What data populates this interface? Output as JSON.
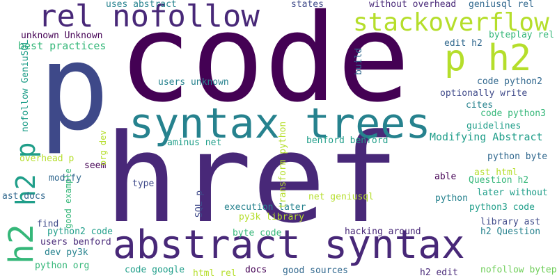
{
  "colors": {
    "background": "#ffffff",
    "palette": {
      "deep_purple": "#440154",
      "purple": "#482878",
      "indigo": "#3e4989",
      "blue": "#31688e",
      "teal_blue": "#26828e",
      "teal": "#1f9e89",
      "green": "#35b779",
      "light_green": "#6ece58",
      "yellow_green": "#b5de2b",
      "yellow": "#fde725"
    }
  },
  "words": [
    "code",
    "href",
    "abstract syntax",
    "p",
    "syntax trees",
    "rel nofollow",
    "stackoverflow",
    "p h2",
    "h2",
    "h2 p",
    "Modifying Abstract",
    "best practices",
    "unknown Unknown",
    "uses abstract",
    "states",
    "without overhead",
    "geniusql rel",
    "byteplay rel",
    "edit h2",
    "code python2",
    "optionally write",
    "cites",
    "code python3",
    "guidelines",
    "python byte",
    "ast html",
    "Question h2",
    "able",
    "later without",
    "python",
    "python3 code",
    "library ast",
    "h2 Question",
    "nofollow byteplay",
    "h2 edit",
    "good sources",
    "docs",
    "html rel",
    "code google",
    "python org",
    "dev py3k",
    "users benford",
    "python2 code",
    "find",
    "ast docs",
    "modify",
    "overhead p",
    "seem",
    "type",
    "aminus net",
    "benford benford",
    "execution later",
    "py3k library",
    "net geniusql",
    "byte code",
    "hacking around",
    "users unknown",
    "good example",
    "org dev",
    "nofollow GeniuSQL",
    "transform python",
    "SQL p",
    "build"
  ]
}
